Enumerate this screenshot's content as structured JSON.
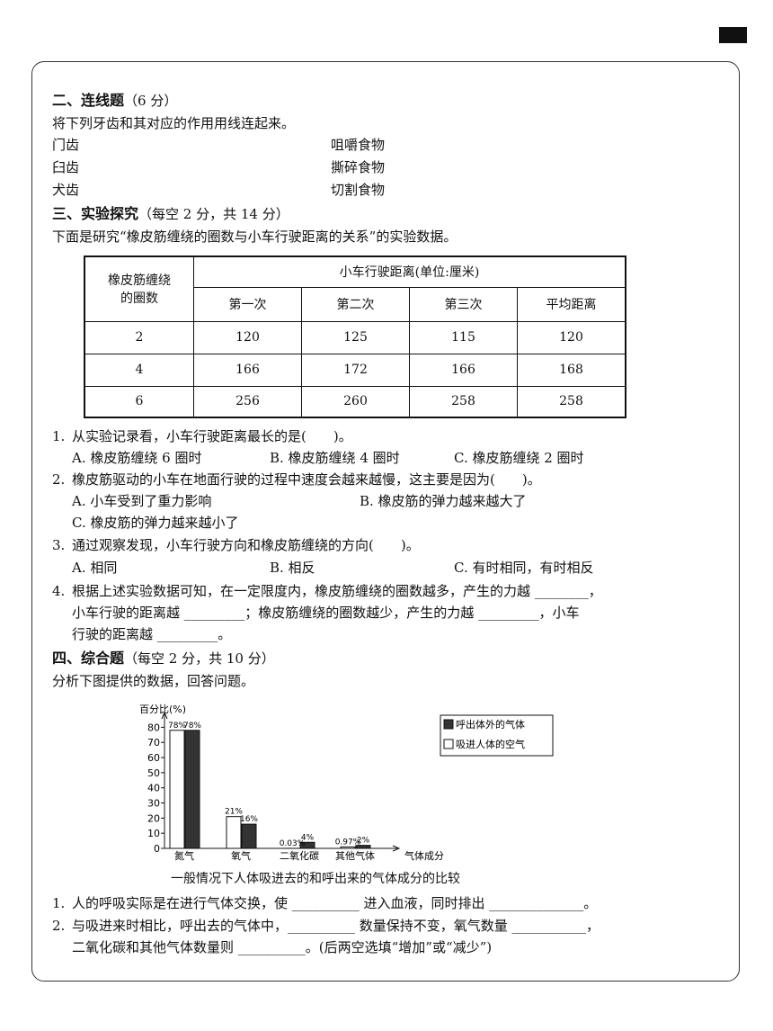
{
  "sections": [
    {
      "heading": "二、连线题",
      "score": "（6 分）",
      "instruction": "将下列牙齿和其对应的作用用线连起来。",
      "left": [
        "门齿",
        "臼齿",
        "犬齿"
      ],
      "right": [
        "咀嚼食物",
        "撕碎食物",
        "切割食物"
      ]
    },
    {
      "heading": "三、实验探究",
      "score": "（每空 2 分，共 14 分）",
      "instruction": "下面是研究“橡皮筋缠绕的圈数与小车行驶距离的关系”的实验数据。",
      "table": {
        "row_header": [
          "橡皮筋缠绕",
          "的圈数"
        ],
        "group_header": "小车行驶距离(单位:厘米)",
        "columns": [
          "第一次",
          "第二次",
          "第三次",
          "平均距离"
        ],
        "rows": [
          [
            2,
            120,
            125,
            115,
            120
          ],
          [
            4,
            166,
            172,
            166,
            168
          ],
          [
            6,
            256,
            260,
            258,
            258
          ]
        ]
      },
      "questions": [
        {
          "number": "1.",
          "lines": [
            "从实验记录看，小车行驶距离最长的是(　　)。"
          ],
          "options": [
            "A. 橡皮筋缠绕 6 圈时",
            "B. 橡皮筋缠绕 4 圈时",
            "C. 橡皮筋缠绕 2 圈时"
          ]
        },
        {
          "number": "2.",
          "lines": [
            "橡皮筋驱动的小车在地面行驶的过程中速度会越来越慢，这主要是因为(　　)。"
          ],
          "options": [
            "A. 小车受到了重力影响",
            "B. 橡皮筋的弹力越来越大了",
            "C. 橡皮筋的弹力越来越小了"
          ]
        },
        {
          "number": "3.",
          "lines": [
            "通过观察发现，小车行驶方向和橡皮筋缠绕的方向(　　)。"
          ],
          "options": [
            "A. 相同",
            "B. 相反",
            "C. 有时相同，有时相反"
          ]
        },
        {
          "number": "4.",
          "lines": [
            "根据上述实验数据可知，在一定限度内，橡皮筋缠绕的圈数越多，产生的力越 ________，",
            "小车行驶的距离越 _________；橡皮筋缠绕的圈数越少，产生的力越 _________，小车",
            "行驶的距离越 _________。"
          ]
        }
      ]
    },
    {
      "heading": "四、综合题",
      "score": "（每空 2 分，共 10 分）",
      "instruction": "分析下图提供的数据，回答问题。",
      "chart": {
        "type": "bar",
        "y_label": "百分比(%)",
        "x_label": "气体成分",
        "categories": [
          "氮气",
          "氧气",
          "二氧化碳",
          "其他气体"
        ],
        "series": [
          {
            "name": "呼出体外的气体",
            "color": "#333333",
            "values": [
              78,
              16,
              4,
              2
            ],
            "value_labels": [
              "78%",
              "16%",
              "4%",
              "2%"
            ]
          },
          {
            "name": "吸进人体的空气",
            "color": "#ffffff",
            "values": [
              78,
              21,
              0.03,
              0.97
            ],
            "value_labels": [
              "78%",
              "21%",
              "0.03%",
              "0.97%"
            ]
          }
        ],
        "ylim": [
          0,
          85
        ],
        "yticks": [
          0,
          10,
          20,
          30,
          40,
          50,
          60,
          70,
          80
        ],
        "caption": "一般情况下人体吸进去的和呼出来的气体成分的比较"
      },
      "questions": [
        {
          "number": "1.",
          "lines": [
            "人的呼吸实际是在进行气体交换，使 __________ 进入血液，同时排出 ______________。"
          ]
        },
        {
          "number": "2.",
          "lines": [
            "与吸进来时相比，呼出去的气体中，__________ 数量保持不变，氧气数量 ___________，",
            "二氧化碳和其他气体数量则 __________。(后两空选填“增加”或“减少”)"
          ]
        }
      ]
    }
  ]
}
